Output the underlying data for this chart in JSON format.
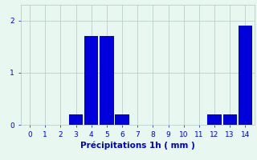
{
  "hours": [
    0,
    1,
    2,
    3,
    4,
    5,
    6,
    7,
    8,
    9,
    10,
    11,
    12,
    13,
    14
  ],
  "values": [
    0,
    0,
    0,
    0.2,
    1.7,
    1.7,
    0.2,
    0,
    0,
    0,
    0,
    0,
    0.2,
    0.2,
    1.9
  ],
  "bar_color": "#0000dd",
  "background_color": "#e8f8f0",
  "grid_color": "#afc8c0",
  "text_color": "#0000cc",
  "xlabel": "Précipitations 1h ( mm )",
  "xlim": [
    -0.6,
    14.6
  ],
  "ylim": [
    0,
    2.3
  ],
  "yticks": [
    0,
    1,
    2
  ],
  "xticks": [
    0,
    1,
    2,
    3,
    4,
    5,
    6,
    7,
    8,
    9,
    10,
    11,
    12,
    13,
    14
  ],
  "bar_width": 0.9,
  "xlabel_fontsize": 7.5,
  "tick_fontsize": 6.5
}
